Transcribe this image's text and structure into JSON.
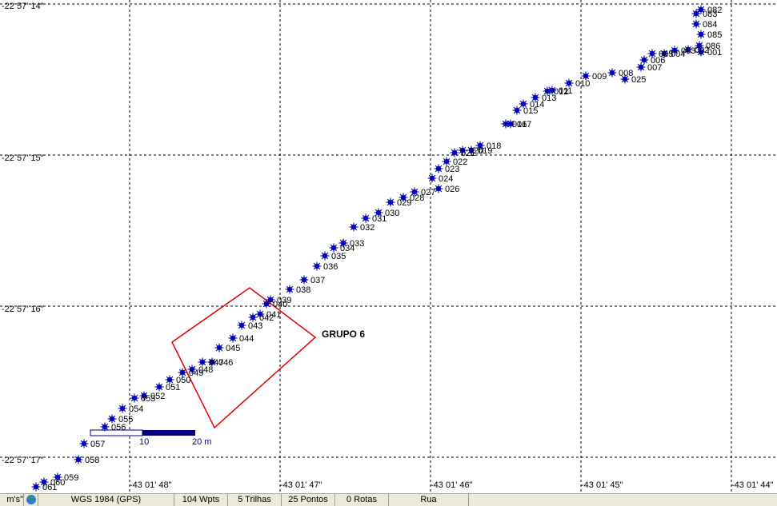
{
  "map": {
    "lat_labels": [
      "-22 57' 14\"",
      "-22 57' 15\"",
      "-22 57' 16\"",
      "-22 57' 17\""
    ],
    "lon_labels": [
      "-43 01' 48\"",
      "-43 01' 47\"",
      "-43 01' 46\"",
      "-43 01' 45\"",
      "-43 01' 44\""
    ],
    "waypoints": [
      "082",
      "083",
      "084",
      "085",
      "086",
      "001",
      "002",
      "003",
      "004",
      "005",
      "006",
      "007",
      "025",
      "008",
      "009",
      "010",
      "011",
      "012",
      "013",
      "014",
      "015",
      "016",
      "017",
      "018",
      "019",
      "020",
      "021",
      "022",
      "023",
      "024",
      "026",
      "027",
      "028",
      "029",
      "030",
      "031",
      "032",
      "033",
      "034",
      "035",
      "036",
      "037",
      "038",
      "039",
      "040",
      "041",
      "042",
      "043",
      "044",
      "045",
      "046",
      "047",
      "048",
      "049",
      "050",
      "051",
      "052",
      "053",
      "054",
      "055",
      "056",
      "057",
      "058",
      "059",
      "060",
      "061"
    ],
    "group_label": "GRUPO 6",
    "scale_labels": [
      "10",
      "20 m"
    ]
  },
  "status_bar": [
    "m's\"",
    "WGS 1984 (GPS)",
    "104 Wpts",
    "5 Trilhas",
    "25 Pontos",
    "0 Rotas",
    "Rua"
  ]
}
